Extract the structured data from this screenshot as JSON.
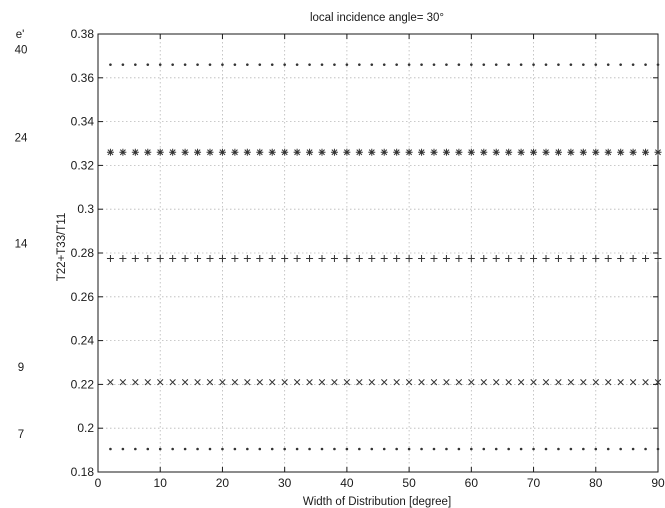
{
  "chart_data": {
    "type": "scatter",
    "title": "local incidence angle= 30°",
    "xlabel": "Width of Distribution [degree]",
    "ylabel": "T22+T33/T11",
    "xlim": [
      0,
      90
    ],
    "ylim": [
      0.18,
      0.38
    ],
    "grid": true,
    "x_ticks": [
      "0",
      "10",
      "20",
      "30",
      "40",
      "50",
      "60",
      "70",
      "80",
      "90"
    ],
    "y_ticks": [
      "0.18",
      "0.2",
      "0.22",
      "0.24",
      "0.26",
      "0.28",
      "0.3",
      "0.32",
      "0.34",
      "0.36",
      "0.38"
    ],
    "x": [
      2,
      4,
      6,
      8,
      10,
      12,
      14,
      16,
      18,
      20,
      22,
      24,
      26,
      28,
      30,
      32,
      34,
      36,
      38,
      40,
      42,
      44,
      46,
      48,
      50,
      52,
      54,
      56,
      58,
      60,
      62,
      64,
      66,
      68,
      70,
      72,
      74,
      76,
      78,
      80,
      82,
      84,
      86,
      88,
      90
    ],
    "series": [
      {
        "marker": "dot",
        "y": 0.366
      },
      {
        "marker": "asterisk",
        "y": 0.326
      },
      {
        "marker": "plus",
        "y": 0.2775
      },
      {
        "marker": "x",
        "y": 0.221
      },
      {
        "marker": "dot",
        "y": 0.1905
      }
    ],
    "side_labels": {
      "heading": "e'",
      "items": [
        {
          "text": "40",
          "y": 0.366
        },
        {
          "text": "24",
          "y": 0.326
        },
        {
          "text": "14",
          "y": 0.2775
        },
        {
          "text": "9",
          "y": 0.221
        },
        {
          "text": "7",
          "y": 0.1905
        }
      ]
    },
    "colors": {
      "marker": "#333333",
      "grid": "#b8b8b8",
      "axis": "#1a1a1a"
    }
  }
}
